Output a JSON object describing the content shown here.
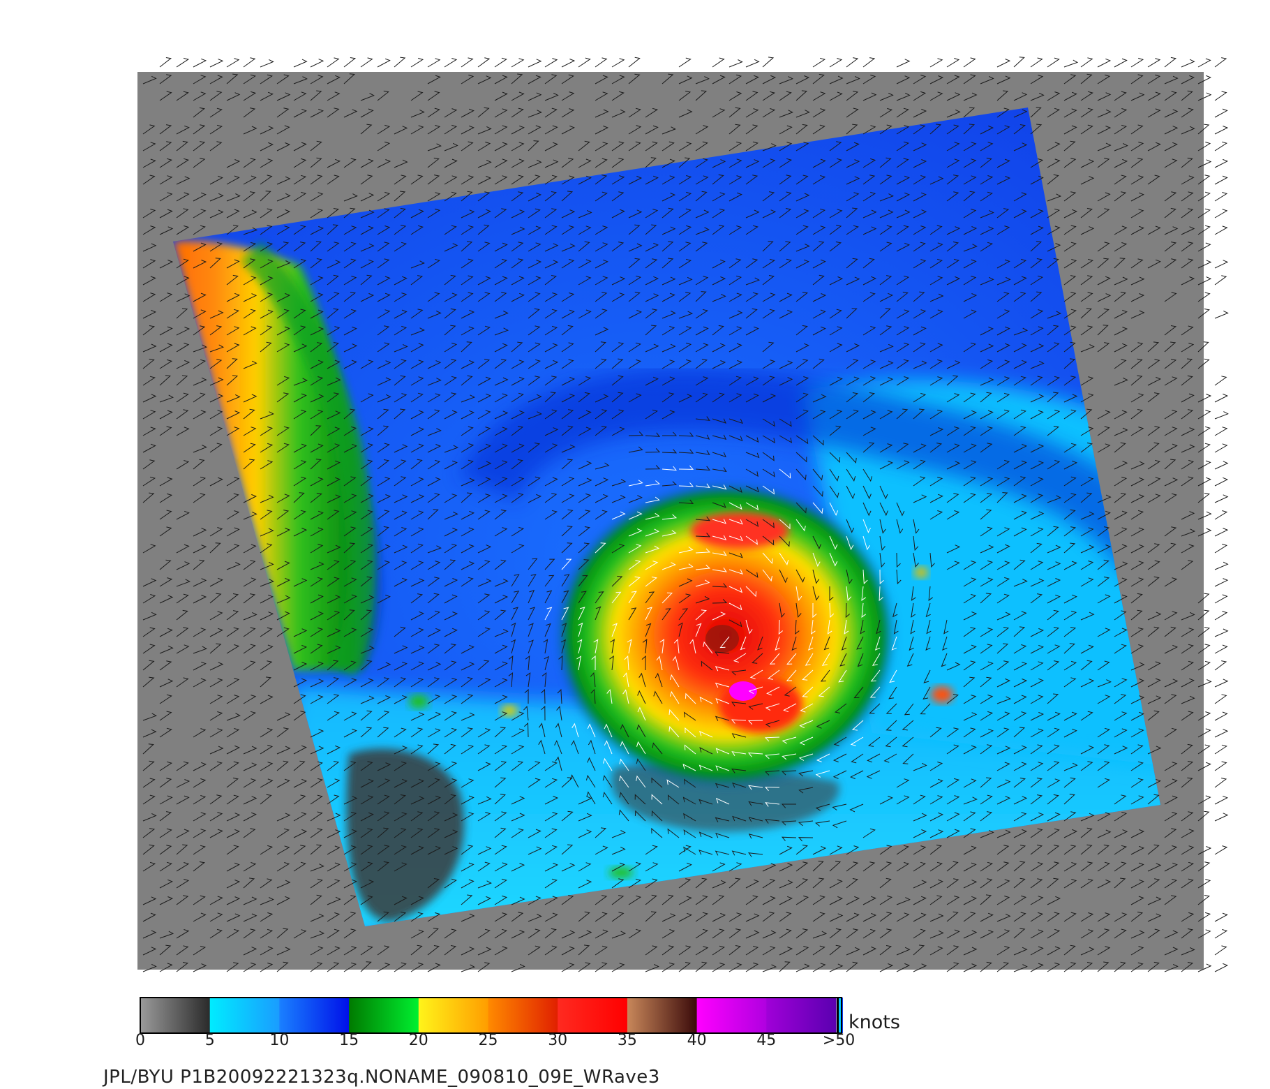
{
  "map": {
    "product": "QuikSCAT-style scatterometer wind speed image with wind barbs",
    "colors": {
      "land_no_data": "#808080",
      "background": "#ffffff",
      "barb": "#1a1a1a",
      "barb_high": "#ffffff"
    }
  },
  "colorbar": {
    "unit": "knots",
    "ticks": [
      "0",
      "5",
      "10",
      "15",
      "20",
      "25",
      "30",
      "35",
      "40",
      "45",
      ">50"
    ],
    "segments": [
      {
        "from": 0,
        "to": 5,
        "colors": [
          "#9a9a9a",
          "#2a2a2a"
        ]
      },
      {
        "from": 5,
        "to": 10,
        "colors": [
          "#00ecff",
          "#1a9cff"
        ]
      },
      {
        "from": 10,
        "to": 15,
        "colors": [
          "#1a80ff",
          "#0010e8"
        ]
      },
      {
        "from": 15,
        "to": 20,
        "colors": [
          "#007a00",
          "#00f030"
        ]
      },
      {
        "from": 20,
        "to": 25,
        "colors": [
          "#fff41a",
          "#ff9d00"
        ]
      },
      {
        "from": 25,
        "to": 30,
        "colors": [
          "#ff8a00",
          "#e02000"
        ]
      },
      {
        "from": 30,
        "to": 35,
        "colors": [
          "#ff2a20",
          "#ff0000"
        ]
      },
      {
        "from": 35,
        "to": 40,
        "colors": [
          "#c8875a",
          "#3a0a0a"
        ]
      },
      {
        "from": 40,
        "to": 45,
        "colors": [
          "#ff00ff",
          "#b000e0"
        ]
      },
      {
        "from": 45,
        "to": 50,
        "colors": [
          "#a000d8",
          "#5a00b0"
        ]
      }
    ]
  },
  "footer": {
    "text": "JPL/BYU  P1B20092221323q.NONAME_090810_09E_WRave3"
  }
}
